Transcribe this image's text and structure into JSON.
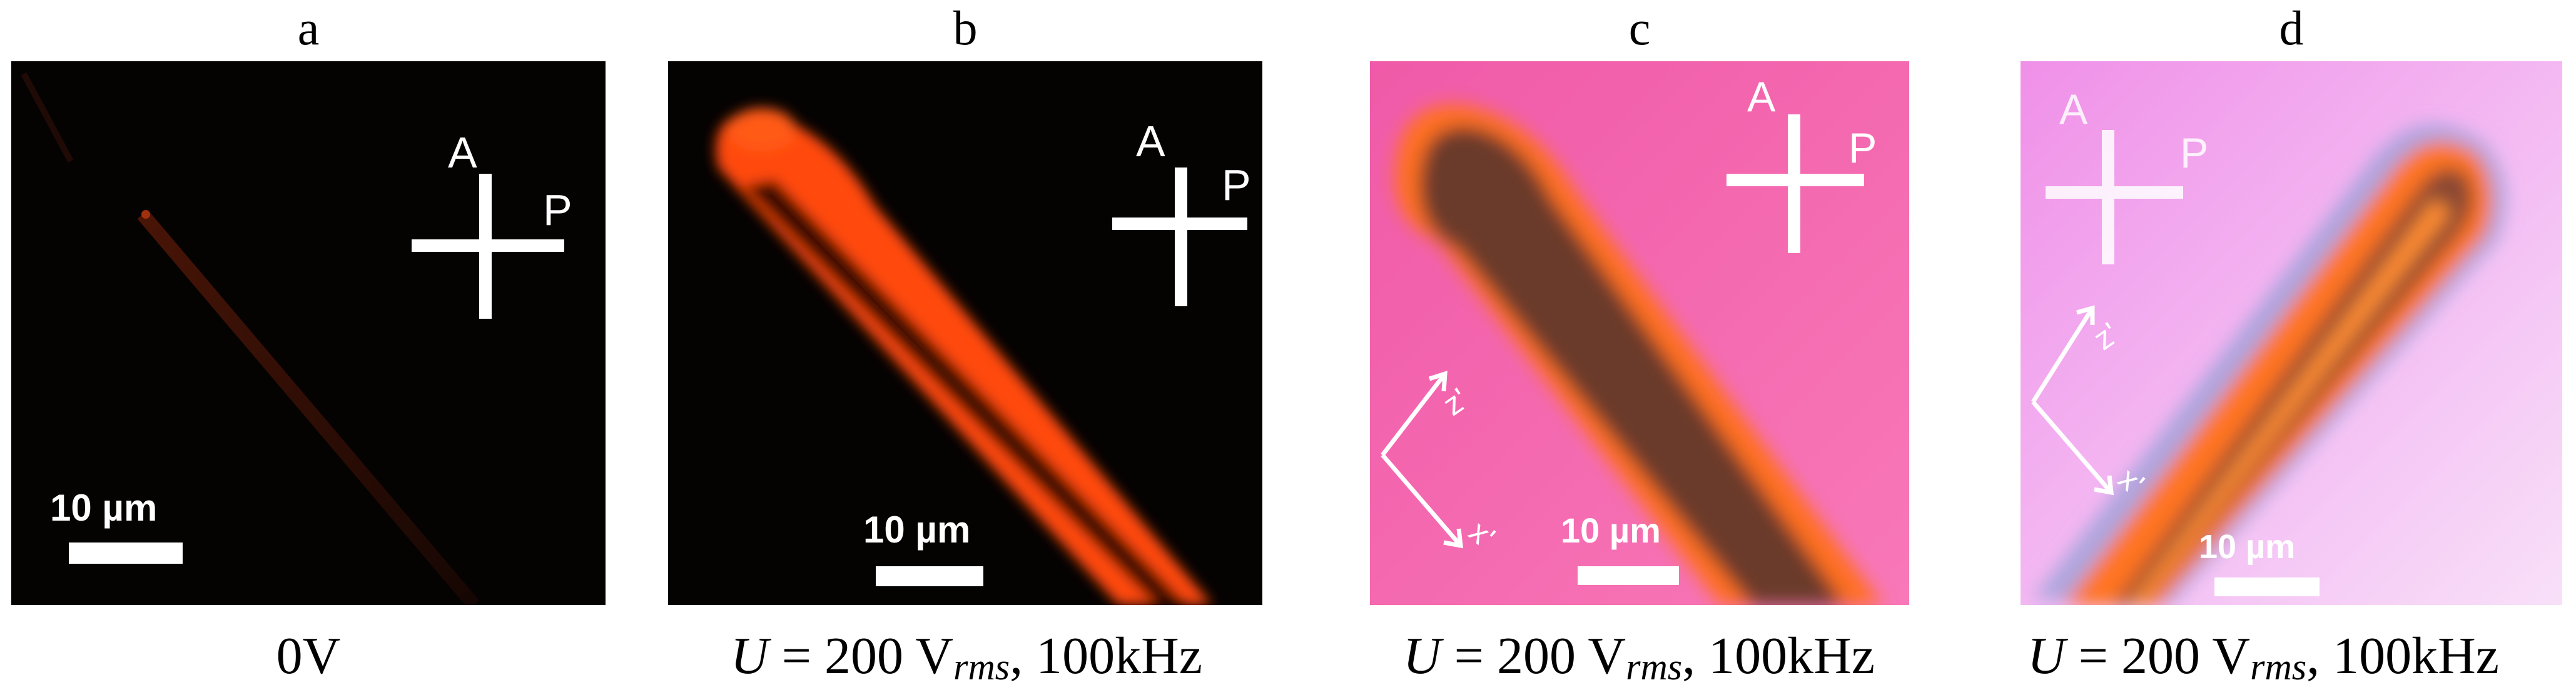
{
  "panels": [
    {
      "letter": "a",
      "polarizer_labels": {
        "analyzer": "A",
        "polarizer": "P"
      },
      "scale_bar": "10 µm",
      "caption": {
        "text": "0V"
      }
    },
    {
      "letter": "b",
      "polarizer_labels": {
        "analyzer": "A",
        "polarizer": "P"
      },
      "scale_bar": "10 µm",
      "caption": {
        "variable": "U",
        "equals": " = 200 V",
        "subscript": "rms",
        "tail": ", 100kHz"
      }
    },
    {
      "letter": "c",
      "polarizer_labels": {
        "analyzer": "A",
        "polarizer": "P"
      },
      "axes_labels": {
        "z": "z'",
        "x": "x'"
      },
      "scale_bar": "10 µm",
      "caption": {
        "variable": "U",
        "equals": " = 200 V",
        "subscript": "rms",
        "tail": ", 100kHz"
      }
    },
    {
      "letter": "d",
      "polarizer_labels": {
        "analyzer": "A",
        "polarizer": "P"
      },
      "axes_labels": {
        "z": "z'",
        "x": "x'"
      },
      "scale_bar": "10 µm",
      "caption": {
        "variable": "U",
        "equals": " = 200 V",
        "subscript": "rms",
        "tail": ", 100kHz"
      }
    }
  ],
  "colors": {
    "dark_background": "#050202",
    "pink_background": "#f05aa8",
    "light_pink_background": "#f0b4f0",
    "fiber_glow": "#ff4a10",
    "overlay": "#ffffff"
  }
}
